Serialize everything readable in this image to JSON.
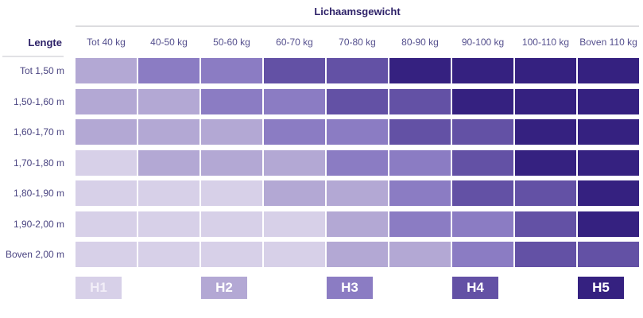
{
  "title": "Lichaamsgewicht",
  "row_axis_label": "Lengte",
  "legend": [
    {
      "label": "H1",
      "color": "#d7d0e8"
    },
    {
      "label": "H2",
      "color": "#b3a8d4"
    },
    {
      "label": "H3",
      "color": "#8b7cc3"
    },
    {
      "label": "H4",
      "color": "#6351a5"
    },
    {
      "label": "H5",
      "color": "#352180"
    }
  ],
  "colors": {
    "title_text": "#2d2168",
    "column_header_text": "#55508e",
    "row_label_text": "#4b4582",
    "divider": "#dcdcdf",
    "background": "#ffffff"
  },
  "chart_data": {
    "type": "heatmap",
    "title": "Lichaamsgewicht",
    "x_axis_label": "Lichaamsgewicht",
    "y_axis_label": "Lengte",
    "x_categories": [
      "Tot 40 kg",
      "40-50 kg",
      "50-60 kg",
      "60-70 kg",
      "70-80 kg",
      "80-90 kg",
      "90-100 kg",
      "100-110 kg",
      "Boven 110 kg"
    ],
    "y_categories": [
      "Tot 1,50 m",
      "1,50-1,60 m",
      "1,60-1,70 m",
      "1,70-1,80 m",
      "1,80-1,90 m",
      "1,90-2,00 m",
      "Boven 2,00 m"
    ],
    "values": [
      [
        "H2",
        "H3",
        "H3",
        "H4",
        "H4",
        "H5",
        "H5",
        "H5",
        "H5"
      ],
      [
        "H2",
        "H2",
        "H3",
        "H3",
        "H4",
        "H4",
        "H5",
        "H5",
        "H5"
      ],
      [
        "H2",
        "H2",
        "H2",
        "H3",
        "H3",
        "H4",
        "H4",
        "H5",
        "H5"
      ],
      [
        "H1",
        "H2",
        "H2",
        "H2",
        "H3",
        "H3",
        "H4",
        "H5",
        "H5"
      ],
      [
        "H1",
        "H1",
        "H1",
        "H2",
        "H2",
        "H3",
        "H4",
        "H4",
        "H5"
      ],
      [
        "H1",
        "H1",
        "H1",
        "H1",
        "H2",
        "H3",
        "H3",
        "H4",
        "H5"
      ],
      [
        "H1",
        "H1",
        "H1",
        "H1",
        "H2",
        "H2",
        "H3",
        "H4",
        "H4"
      ]
    ],
    "legend_position": "bottom",
    "legend_entries": [
      "H1",
      "H2",
      "H3",
      "H4",
      "H5"
    ]
  }
}
